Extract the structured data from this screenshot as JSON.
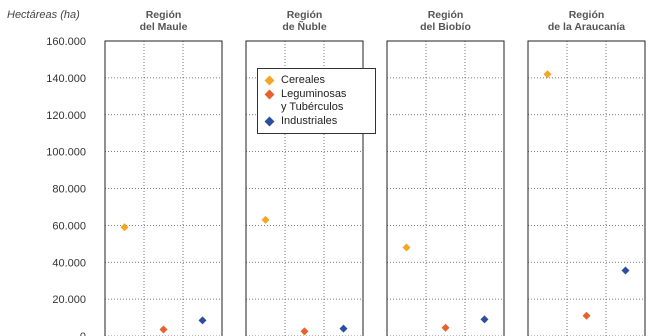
{
  "chart_data": {
    "type": "scatter",
    "unit_label": "Hectáreas (ha)",
    "yticks": [
      "160.000",
      "140.000",
      "120.000",
      "100.000",
      "80.000",
      "60.000",
      "40.000",
      "20.000",
      "0"
    ],
    "ylim": [
      0,
      160000
    ],
    "grid": true,
    "legend_position": "top-left of second panel",
    "panels": [
      {
        "title_line1": "Región",
        "title_line2": "del Maule"
      },
      {
        "title_line1": "Región",
        "title_line2": "de Ñuble"
      },
      {
        "title_line1": "Región",
        "title_line2": "del Biobío"
      },
      {
        "title_line1": "Región",
        "title_line2": "de la Araucanía"
      }
    ],
    "series": [
      {
        "name": "Cereales",
        "color": "#F5A623",
        "values": [
          59000,
          63000,
          48000,
          142000
        ]
      },
      {
        "name": "Leguminosas y Tubérculos",
        "name_line1": "Leguminosas",
        "name_line2": "y Tubérculos",
        "color": "#E8602C",
        "values": [
          3500,
          2500,
          4500,
          11000
        ]
      },
      {
        "name": "Industriales",
        "color": "#2D4E9E",
        "values": [
          8500,
          4000,
          9000,
          35500
        ]
      }
    ]
  }
}
